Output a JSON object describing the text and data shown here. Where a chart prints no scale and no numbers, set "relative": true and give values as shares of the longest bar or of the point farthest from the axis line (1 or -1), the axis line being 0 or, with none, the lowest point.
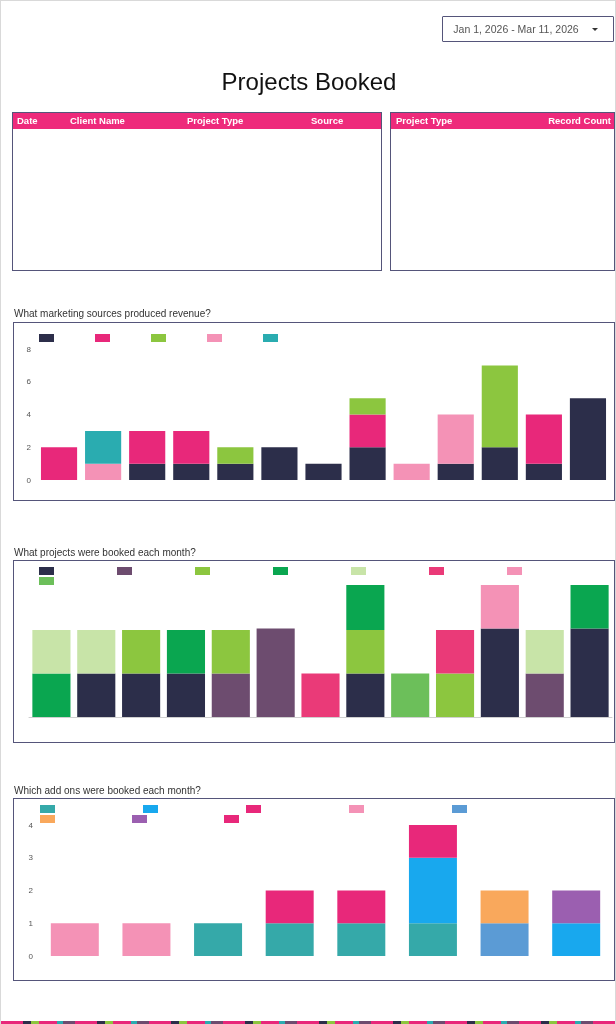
{
  "chart_data": [
    {
      "type": "other",
      "title": "Projects Booked",
      "annotations": [
        "Jan 1, 2026 - Mar 11, 2026"
      ]
    },
    {
      "type": "other",
      "annotations": [
        "Date",
        "Client Name",
        "Project Type",
        "Source"
      ]
    },
    {
      "type": "other",
      "annotations": [
        "Project Type",
        "Record Count"
      ]
    },
    {
      "type": "bar",
      "title": "What marketing sources produced revenue?",
      "categories": [
        null,
        null,
        null,
        null,
        null,
        null,
        null,
        null,
        null,
        null,
        null,
        null,
        null
      ],
      "stacked": true,
      "ylim": [
        0,
        8
      ],
      "yticks": [
        0,
        2,
        4,
        6,
        8
      ],
      "series": [
        {
          "color": "#2c2e4a",
          "values": [
            null,
            null,
            1,
            1,
            1,
            2,
            1,
            2,
            null,
            1,
            2,
            1,
            5
          ]
        },
        {
          "color": "#e8287a",
          "values": [
            2,
            null,
            2,
            2,
            null,
            null,
            null,
            2,
            null,
            null,
            null,
            3,
            null
          ]
        },
        {
          "color": "#8cc63f",
          "values": [
            null,
            null,
            null,
            null,
            1,
            null,
            null,
            1,
            null,
            null,
            5,
            null,
            null
          ]
        },
        {
          "color": "#f492b6",
          "values": [
            null,
            1,
            null,
            null,
            null,
            null,
            null,
            null,
            1,
            3,
            null,
            null,
            null
          ]
        },
        {
          "color": "#2aacb0",
          "values": [
            null,
            2,
            null,
            null,
            null,
            null,
            null,
            null,
            null,
            null,
            null,
            null,
            null
          ]
        }
      ]
    },
    {
      "type": "bar",
      "title": "What projects were booked each month?",
      "categories": [
        null,
        null,
        null,
        null,
        null,
        null,
        null,
        null,
        null,
        null,
        null,
        null,
        null
      ],
      "stacked": true,
      "relative": true,
      "series": [
        {
          "color": "#2c2e4a",
          "values": [
            null,
            0.33,
            0.33,
            0.33,
            null,
            null,
            null,
            0.33,
            null,
            null,
            0.67,
            null,
            0.67
          ]
        },
        {
          "color": "#6d4c6f",
          "values": [
            null,
            null,
            null,
            null,
            0.33,
            0.67,
            null,
            null,
            null,
            null,
            null,
            0.33,
            null
          ]
        },
        {
          "color": "#8cc63f",
          "values": [
            null,
            null,
            0.33,
            null,
            0.33,
            null,
            null,
            0.33,
            null,
            0.33,
            null,
            null,
            null
          ]
        },
        {
          "color": "#0aa650",
          "values": [
            0.33,
            null,
            null,
            0.33,
            null,
            null,
            null,
            0.34,
            null,
            null,
            null,
            null,
            0.33
          ]
        },
        {
          "color": "#c8e4a8",
          "values": [
            0.33,
            0.33,
            null,
            null,
            null,
            null,
            null,
            null,
            null,
            null,
            null,
            0.33,
            null
          ]
        },
        {
          "color": "#ea3a78",
          "values": [
            null,
            null,
            null,
            null,
            null,
            null,
            0.33,
            null,
            null,
            0.33,
            null,
            null,
            null
          ]
        },
        {
          "color": "#f492b6",
          "values": [
            null,
            null,
            null,
            null,
            null,
            null,
            null,
            null,
            null,
            null,
            0.33,
            null,
            null
          ]
        },
        {
          "color": "#6cbf5a",
          "values": [
            null,
            null,
            null,
            null,
            null,
            null,
            null,
            null,
            0.33,
            null,
            null,
            null,
            null
          ]
        }
      ]
    },
    {
      "type": "bar",
      "title": "Which add ons were booked each month?",
      "categories": [
        null,
        null,
        null,
        null,
        null,
        null,
        null,
        null
      ],
      "stacked": true,
      "ylim": [
        0,
        4
      ],
      "yticks": [
        0,
        1,
        2,
        3,
        4
      ],
      "series": [
        {
          "color": "#35a9a9",
          "values": [
            null,
            null,
            1,
            1,
            1,
            1,
            null,
            null
          ]
        },
        {
          "color": "#18a8ee",
          "values": [
            null,
            null,
            null,
            null,
            null,
            2,
            null,
            1
          ]
        },
        {
          "color": "#e8287a",
          "values": [
            null,
            null,
            null,
            1,
            1,
            null,
            null,
            null
          ]
        },
        {
          "color": "#f492b6",
          "values": [
            1,
            1,
            null,
            null,
            null,
            null,
            null,
            null
          ]
        },
        {
          "color": "#5b9bd5",
          "values": [
            null,
            null,
            null,
            null,
            null,
            null,
            1,
            null
          ]
        },
        {
          "color": "#f9a85c",
          "values": [
            null,
            null,
            null,
            null,
            null,
            null,
            1,
            null
          ]
        },
        {
          "color": "#9b5fb0",
          "values": [
            null,
            null,
            null,
            null,
            null,
            null,
            null,
            1
          ]
        },
        {
          "color": "#e8287a",
          "values": [
            null,
            null,
            null,
            null,
            null,
            1,
            null,
            null
          ]
        }
      ]
    }
  ]
}
